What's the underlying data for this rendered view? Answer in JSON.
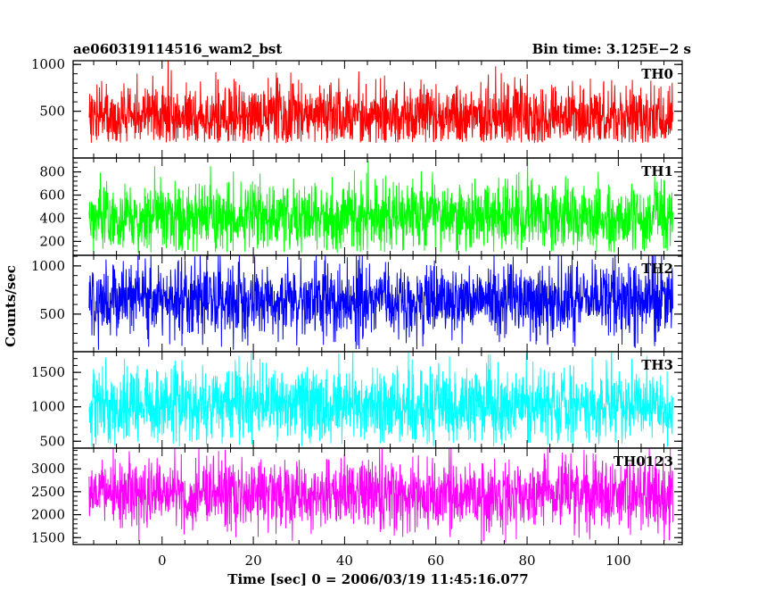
{
  "chart_data": {
    "type": "line",
    "header": {
      "title": "ae060319114516_wam2_bst",
      "bin_time": "Bin time: 3.125E−2 s"
    },
    "xlabel": "Time [sec] 0 = 2006/03/19 11:45:16.077",
    "ylabel": "Counts/sec",
    "xlim": [
      -19.5,
      114
    ],
    "x_ticks": [
      0,
      20,
      40,
      60,
      80,
      100
    ],
    "x_tick_labels": [
      "0",
      "20",
      "40",
      "60",
      "80",
      "100"
    ],
    "x_data_range": [
      -16,
      112
    ],
    "bin_time": 0.03125,
    "panels": [
      {
        "name": "TH0",
        "color": "#ff0000",
        "ylim": [
          0,
          1040
        ],
        "ticks": [
          500,
          1000
        ],
        "tick_labels": [
          "500",
          "1000"
        ],
        "mean": 440,
        "spread": 180,
        "min": 160,
        "max": 1040
      },
      {
        "name": "TH1",
        "color": "#00ff00",
        "ylim": [
          80,
          920
        ],
        "ticks": [
          200,
          400,
          600,
          800
        ],
        "tick_labels": [
          "200",
          "400",
          "600",
          "800"
        ],
        "mean": 420,
        "spread": 150,
        "min": 100,
        "max": 920
      },
      {
        "name": "TH2",
        "color": "#0000ff",
        "ylim": [
          110,
          1110
        ],
        "ticks": [
          500,
          1000
        ],
        "tick_labels": [
          "500",
          "1000"
        ],
        "mean": 660,
        "spread": 190,
        "min": 130,
        "max": 1110
      },
      {
        "name": "TH3",
        "color": "#00ffff",
        "ylim": [
          400,
          1800
        ],
        "ticks": [
          500,
          1000,
          1500
        ],
        "tick_labels": [
          "500",
          "1000",
          "1500"
        ],
        "mean": 1010,
        "spread": 270,
        "min": 420,
        "max": 1800
      },
      {
        "name": "TH0123",
        "color": "#ff00ff",
        "ylim": [
          1350,
          3450
        ],
        "ticks": [
          1500,
          2000,
          2500,
          3000
        ],
        "tick_labels": [
          "1500",
          "2000",
          "2500",
          "3000"
        ],
        "mean": 2440,
        "spread": 380,
        "min": 1380,
        "max": 3450
      }
    ]
  }
}
